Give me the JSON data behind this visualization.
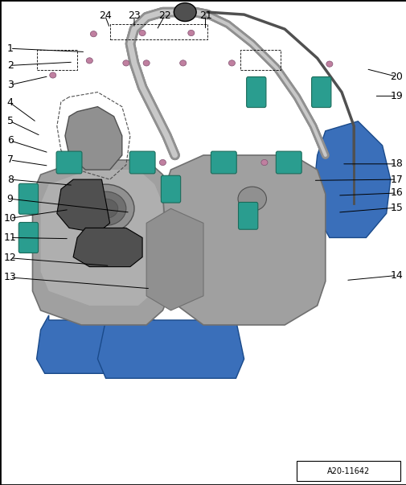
{
  "title": "",
  "border_color": "#000000",
  "background_color": "#ffffff",
  "image_label": "A20-11642",
  "callout_numbers": [
    1,
    2,
    3,
    4,
    5,
    6,
    7,
    8,
    9,
    10,
    11,
    12,
    13,
    14,
    15,
    16,
    17,
    18,
    19,
    20,
    21,
    22,
    23,
    24
  ],
  "line_color": "#000000",
  "label_fontsize": 9,
  "fig_width": 5.06,
  "fig_height": 6.03,
  "dpi": 100,
  "border_linewidth": 1.5,
  "silver": "#a0a0a0",
  "dark_silver": "#707070",
  "light_silver": "#c8c8c8",
  "teal": "#2a9d8f",
  "blue_plastic": "#3a6fba",
  "mid_gray": "#909090",
  "dark_gray": "#505050",
  "bolt_color": "#c080a0",
  "bolt_edge": "#805070",
  "black": "#000000",
  "white": "#ffffff"
}
